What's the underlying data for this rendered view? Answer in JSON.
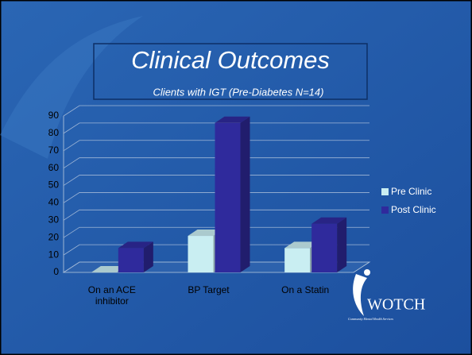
{
  "chart_data": {
    "type": "bar3d",
    "title": "Clinical Outcomes",
    "subtitle": "Clients with IGT (Pre-Diabetes N=14)",
    "categories": [
      "On an ACE inhibitor",
      "BP Target",
      "On a Statin"
    ],
    "series": [
      {
        "name": "Pre Clinic",
        "color": "#c9eef2",
        "values": [
          0,
          21,
          14
        ]
      },
      {
        "name": "Post Clinic",
        "color": "#2f2a9c",
        "values": [
          14,
          86,
          28
        ]
      }
    ],
    "ylim": [
      0,
      90
    ],
    "yticks": [
      0,
      10,
      20,
      30,
      40,
      50,
      60,
      70,
      80,
      90
    ],
    "grid": true,
    "legend": "right"
  },
  "logo": {
    "name": "WOTCH",
    "tagline": "Community Mental Health Services"
  }
}
